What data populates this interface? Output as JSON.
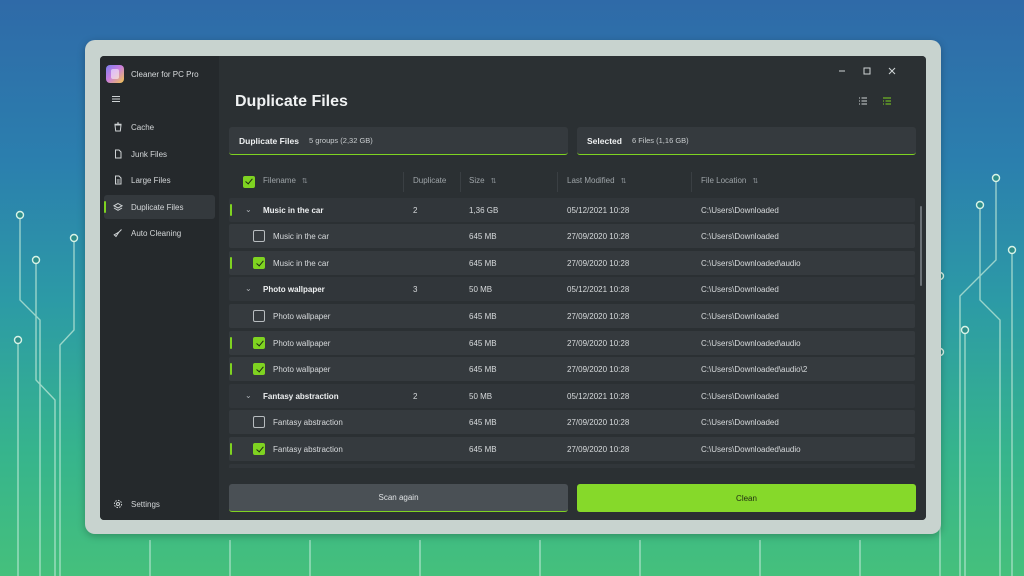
{
  "app": {
    "title": "Cleaner for PC Pro"
  },
  "sidebar": {
    "menu_icon": "hamburger-icon",
    "items": [
      {
        "label": "Cache",
        "icon": "trash-icon",
        "active": false
      },
      {
        "label": "Junk Files",
        "icon": "file-icon",
        "active": false
      },
      {
        "label": "Large Files",
        "icon": "document-icon",
        "active": false
      },
      {
        "label": "Duplicate Files",
        "icon": "layers-icon",
        "active": true
      },
      {
        "label": "Auto Cleaning",
        "icon": "broom-icon",
        "active": false
      }
    ],
    "settings": {
      "label": "Settings",
      "icon": "gear-icon"
    }
  },
  "window_controls": [
    "minimize-icon",
    "maximize-icon",
    "close-icon"
  ],
  "page": {
    "title": "Duplicate Files",
    "view_icons": [
      "list-view-icon",
      "detail-view-icon"
    ]
  },
  "summary": {
    "duplicates": {
      "label": "Duplicate Files",
      "value": "5 groups (2,32 GB)"
    },
    "selected": {
      "label": "Selected",
      "value": "6 Files (1,16 GB)"
    }
  },
  "table": {
    "columns": {
      "filename": "Filename",
      "duplicate": "Duplicate",
      "size": "Size",
      "last_modified": "Last Modified",
      "file_location": "File Location"
    },
    "groups": [
      {
        "name": "Music in the car",
        "duplicate": "2",
        "size": "1,36 GB",
        "modified": "05/12/2021 10:28",
        "location": "C:\\Users\\Downloaded",
        "marked": true,
        "files": [
          {
            "name": "Music in the car",
            "size": "645 MB",
            "modified": "27/09/2020 10:28",
            "location": "C:\\Users\\Downloaded",
            "checked": false
          },
          {
            "name": "Music in the car",
            "size": "645 MB",
            "modified": "27/09/2020 10:28",
            "location": "C:\\Users\\Downloaded\\audio",
            "checked": true
          }
        ]
      },
      {
        "name": "Photo wallpaper",
        "duplicate": "3",
        "size": "50 MB",
        "modified": "05/12/2021 10:28",
        "location": "C:\\Users\\Downloaded",
        "marked": false,
        "files": [
          {
            "name": "Photo wallpaper",
            "size": "645 MB",
            "modified": "27/09/2020 10:28",
            "location": "C:\\Users\\Downloaded",
            "checked": false
          },
          {
            "name": "Photo wallpaper",
            "size": "645 MB",
            "modified": "27/09/2020 10:28",
            "location": "C:\\Users\\Downloaded\\audio",
            "checked": true
          },
          {
            "name": "Photo wallpaper",
            "size": "645 MB",
            "modified": "27/09/2020 10:28",
            "location": "C:\\Users\\Downloaded\\audio\\2",
            "checked": true
          }
        ]
      },
      {
        "name": "Fantasy abstraction",
        "duplicate": "2",
        "size": "50 MB",
        "modified": "05/12/2021 10:28",
        "location": "C:\\Users\\Downloaded",
        "marked": false,
        "files": [
          {
            "name": "Fantasy abstraction",
            "size": "645 MB",
            "modified": "27/09/2020 10:28",
            "location": "C:\\Users\\Downloaded",
            "checked": false
          },
          {
            "name": "Fantasy abstraction",
            "size": "645 MB",
            "modified": "27/09/2020 10:28",
            "location": "C:\\Users\\Downloaded\\audio",
            "checked": true
          }
        ]
      }
    ]
  },
  "buttons": {
    "scan_again": "Scan again",
    "clean": "Clean"
  },
  "colors": {
    "accent": "#7fd321",
    "window_bg": "#2b3033",
    "sidebar_bg": "#25292c",
    "row_bg": "#353a3e"
  }
}
